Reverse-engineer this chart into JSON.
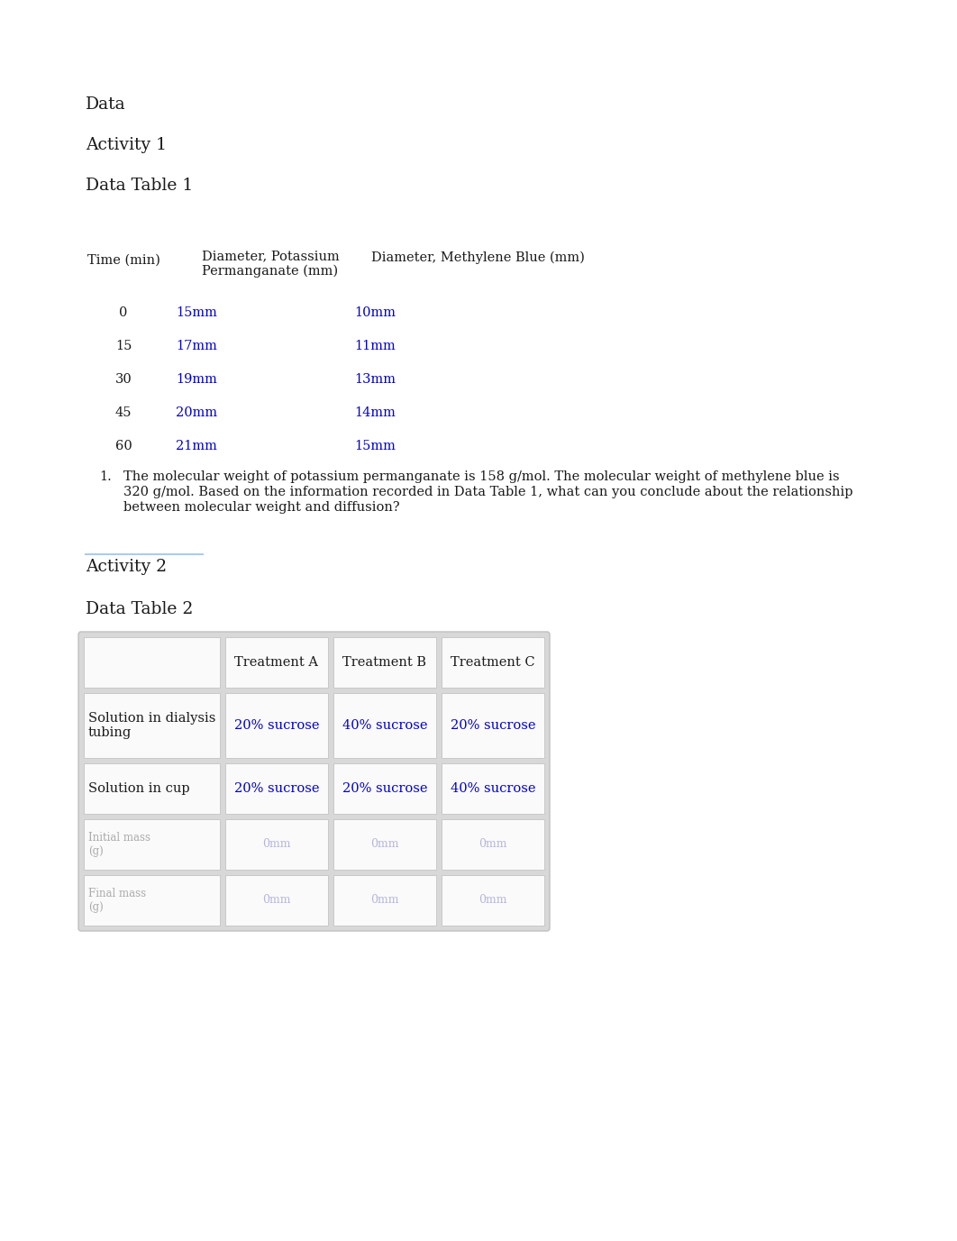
{
  "title_data": "Data",
  "activity1": "Activity 1",
  "data_table1": "Data Table 1",
  "col_header_time": "Time (min)",
  "col_header_potassium": "Diameter, Potassium\nPermanganate (mm)",
  "col_header_methylene": "Diameter, Methylene Blue (mm)",
  "time_values": [
    "0",
    "15",
    "30",
    "45",
    "60"
  ],
  "potassium_values": [
    "15mm",
    "17mm",
    "19mm",
    "20mm",
    "21mm"
  ],
  "methylene_values": [
    "10mm",
    "11mm",
    "13mm",
    "14mm",
    "15mm"
  ],
  "question1_num": "1.",
  "question1_line1": "The molecular weight of potassium permanganate is 158 g/mol. The molecular weight of methylene blue is",
  "question1_line2": "320 g/mol. Based on the information recorded in Data Table 1, what can you conclude about the relationship",
  "question1_line3": "between molecular weight and diffusion?",
  "activity2": "Activity 2",
  "data_table2": "Data Table 2",
  "t2_col_headers": [
    "",
    "Treatment A",
    "Treatment B",
    "Treatment C"
  ],
  "t2_row1_label": "Solution in dialysis\ntubing",
  "t2_row2_label": "Solution in cup",
  "t2_row1_data": [
    "20% sucrose",
    "40% sucrose",
    "20% sucrose"
  ],
  "t2_row2_data": [
    "20% sucrose",
    "20% sucrose",
    "40% sucrose"
  ],
  "blue_color": "#0000CC",
  "black_color": "#1a1a1a",
  "bg_color": "#FFFFFF",
  "table2_outer_bg": "#E0E0E0",
  "table2_cell_bg": "#F5F5F5",
  "table2_border": "#BBBBBB",
  "faded_blue": "#9999CC",
  "faded_label": "#AAAAAA",
  "activity2_underline_color": "#AACCEE"
}
